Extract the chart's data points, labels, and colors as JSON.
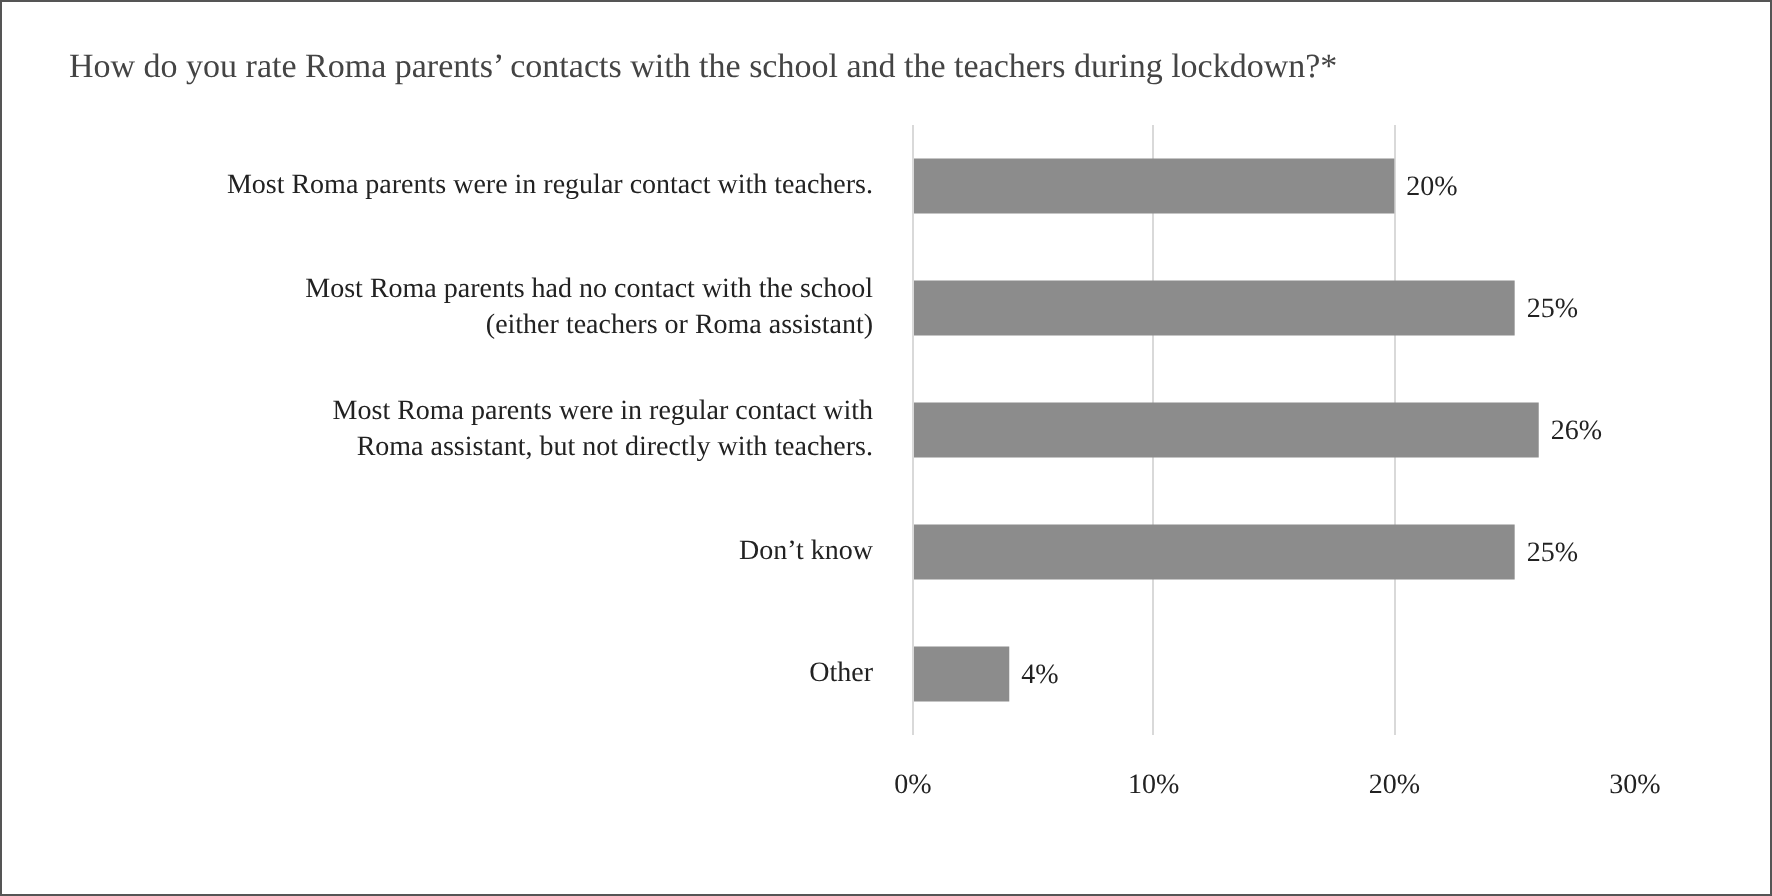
{
  "chart_data": {
    "type": "bar",
    "orientation": "horizontal",
    "title": "How do you rate Roma parents’ contacts with the school and the teachers during lockdown?*",
    "categories": [
      "Most Roma parents were in regular contact with teachers.",
      "Most Roma parents had no contact with the school (either teachers or Roma assistant)",
      "Most Roma parents were in regular contact with Roma assistant, but not directly with teachers.",
      "Don’t know",
      "Other"
    ],
    "values": [
      20,
      25,
      26,
      25,
      4
    ],
    "value_labels": [
      "20%",
      "25%",
      "26%",
      "25%",
      "4%"
    ],
    "color": "#8c8c8c",
    "xlim": [
      0,
      30
    ],
    "xticks": [
      {
        "value": 0,
        "label": "0%"
      },
      {
        "value": 10,
        "label": "10%"
      },
      {
        "value": 20,
        "label": "20%"
      },
      {
        "value": 30,
        "label": "30%"
      }
    ],
    "grid": "x",
    "legend": false
  }
}
